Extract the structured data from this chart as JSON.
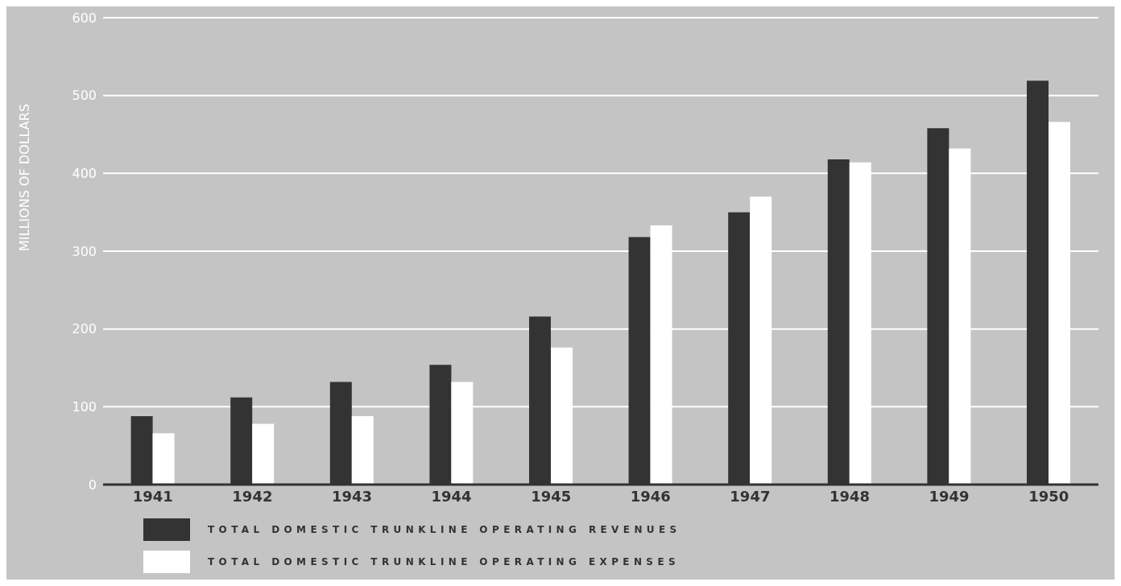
{
  "chart_data": {
    "type": "bar",
    "ylabel": "MILLIONS OF DOLLARS",
    "categories": [
      "1941",
      "1942",
      "1943",
      "1944",
      "1945",
      "1946",
      "1947",
      "1948",
      "1949",
      "1950"
    ],
    "series": [
      {
        "name": "TOTAL DOMESTIC TRUNKLINE OPERATING REVENUES",
        "color": "#333333",
        "values": [
          88,
          112,
          132,
          154,
          216,
          318,
          350,
          418,
          458,
          519
        ]
      },
      {
        "name": "TOTAL DOMESTIC TRUNKLINE OPERATING EXPENSES",
        "color": "#ffffff",
        "values": [
          66,
          78,
          88,
          132,
          176,
          333,
          370,
          414,
          432,
          466
        ]
      }
    ],
    "ylim": [
      0,
      600
    ],
    "yticks": [
      0,
      100,
      200,
      300,
      400,
      500,
      600
    ],
    "grid": "y",
    "legend": "bottom left"
  }
}
